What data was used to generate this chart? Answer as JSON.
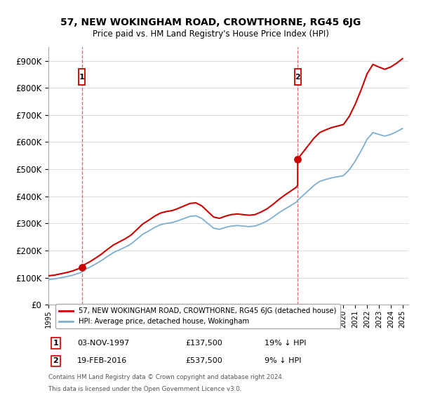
{
  "title": "57, NEW WOKINGHAM ROAD, CROWTHORNE, RG45 6JG",
  "subtitle": "Price paid vs. HM Land Registry's House Price Index (HPI)",
  "legend_line1": "57, NEW WOKINGHAM ROAD, CROWTHORNE, RG45 6JG (detached house)",
  "legend_line2": "HPI: Average price, detached house, Wokingham",
  "footnote1": "Contains HM Land Registry data © Crown copyright and database right 2024.",
  "footnote2": "This data is licensed under the Open Government Licence v3.0.",
  "transaction1_label": "1",
  "transaction1_date": "03-NOV-1997",
  "transaction1_price": "£137,500",
  "transaction1_hpi": "19% ↓ HPI",
  "transaction2_label": "2",
  "transaction2_date": "19-FEB-2016",
  "transaction2_price": "£537,500",
  "transaction2_hpi": "9% ↓ HPI",
  "red_color": "#cc0000",
  "blue_color": "#7bafd4",
  "background_color": "#ffffff",
  "grid_color": "#dddddd",
  "ylim_min": 0,
  "ylim_max": 950000,
  "yticks": [
    0,
    100000,
    200000,
    300000,
    400000,
    500000,
    600000,
    700000,
    800000,
    900000
  ],
  "ytick_labels": [
    "£0",
    "£100K",
    "£200K",
    "£300K",
    "£400K",
    "£500K",
    "£600K",
    "£700K",
    "£800K",
    "£900K"
  ],
  "transaction1_year": 1997.83,
  "transaction1_value": 137500,
  "transaction2_year": 2016.12,
  "transaction2_value": 537500,
  "vline1_x": 1997.83,
  "vline2_x": 2016.12,
  "hpi_x": [
    1995.0,
    1995.5,
    1996.0,
    1996.5,
    1997.0,
    1997.5,
    1997.83,
    1998.0,
    1998.5,
    1999.0,
    1999.5,
    2000.0,
    2000.5,
    2001.0,
    2001.5,
    2002.0,
    2002.5,
    2003.0,
    2003.5,
    2004.0,
    2004.5,
    2005.0,
    2005.5,
    2006.0,
    2006.5,
    2007.0,
    2007.5,
    2008.0,
    2008.5,
    2009.0,
    2009.5,
    2010.0,
    2010.5,
    2011.0,
    2011.5,
    2012.0,
    2012.5,
    2013.0,
    2013.5,
    2014.0,
    2014.5,
    2015.0,
    2015.5,
    2016.0,
    2016.12,
    2016.5,
    2017.0,
    2017.5,
    2018.0,
    2018.5,
    2019.0,
    2019.5,
    2020.0,
    2020.5,
    2021.0,
    2021.5,
    2022.0,
    2022.5,
    2023.0,
    2023.5,
    2024.0,
    2024.5,
    2025.0
  ],
  "hpi_y": [
    93000,
    95000,
    99000,
    103000,
    108000,
    115000,
    120000,
    128000,
    138000,
    150000,
    163000,
    178000,
    192000,
    202000,
    212000,
    224000,
    242000,
    260000,
    272000,
    285000,
    295000,
    300000,
    303000,
    310000,
    318000,
    326000,
    328000,
    318000,
    300000,
    282000,
    278000,
    285000,
    290000,
    292000,
    290000,
    288000,
    290000,
    298000,
    308000,
    322000,
    338000,
    352000,
    365000,
    378000,
    385000,
    400000,
    420000,
    440000,
    455000,
    462000,
    468000,
    472000,
    476000,
    498000,
    530000,
    568000,
    610000,
    635000,
    628000,
    622000,
    628000,
    638000,
    650000
  ],
  "xlim_min": 1995,
  "xlim_max": 2025.5
}
